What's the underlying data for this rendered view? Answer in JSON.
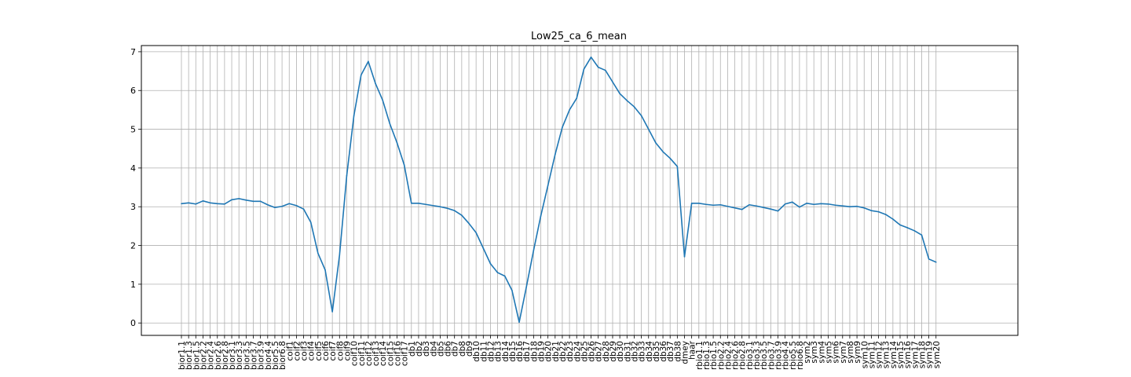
{
  "chart_data": {
    "type": "line",
    "title": "Low25_ca_6_mean",
    "xlabel": "",
    "ylabel": "",
    "ylim": [
      -0.32,
      7.16
    ],
    "yticks": [
      0,
      1,
      2,
      3,
      4,
      5,
      6,
      7
    ],
    "grid": true,
    "line_color": "#1f77b4",
    "categories": [
      "bior1.1",
      "bior1.3",
      "bior1.5",
      "bior2.2",
      "bior2.4",
      "bior2.6",
      "bior2.8",
      "bior3.1",
      "bior3.3",
      "bior3.5",
      "bior3.7",
      "bior3.9",
      "bior4.4",
      "bior5.5",
      "bior6.8",
      "coif1",
      "coif2",
      "coif3",
      "coif4",
      "coif5",
      "coif6",
      "coif7",
      "coif8",
      "coif9",
      "coif10",
      "coif11",
      "coif12",
      "coif13",
      "coif14",
      "coif15",
      "coif16",
      "coif17",
      "db1",
      "db2",
      "db3",
      "db4",
      "db5",
      "db6",
      "db7",
      "db8",
      "db9",
      "db10",
      "db11",
      "db12",
      "db13",
      "db14",
      "db15",
      "db16",
      "db17",
      "db18",
      "db19",
      "db20",
      "db21",
      "db22",
      "db23",
      "db24",
      "db25",
      "db26",
      "db27",
      "db28",
      "db29",
      "db30",
      "db31",
      "db32",
      "db33",
      "db34",
      "db35",
      "db36",
      "db37",
      "db38",
      "dmey",
      "haar",
      "rbio1.1",
      "rbio1.3",
      "rbio1.5",
      "rbio2.2",
      "rbio2.4",
      "rbio2.6",
      "rbio2.8",
      "rbio3.1",
      "rbio3.3",
      "rbio3.5",
      "rbio3.7",
      "rbio3.9",
      "rbio4.4",
      "rbio5.5",
      "rbio6.8",
      "sym2",
      "sym3",
      "sym4",
      "sym5",
      "sym6",
      "sym7",
      "sym8",
      "sym9",
      "sym10",
      "sym11",
      "sym12",
      "sym13",
      "sym14",
      "sym15",
      "sym16",
      "sym17",
      "sym18",
      "sym19",
      "sym20"
    ],
    "values": [
      3.08,
      3.1,
      3.07,
      3.15,
      3.1,
      3.08,
      3.07,
      3.18,
      3.21,
      3.17,
      3.14,
      3.14,
      3.05,
      2.98,
      3.01,
      3.08,
      3.03,
      2.94,
      2.6,
      1.8,
      1.37,
      0.29,
      1.75,
      3.8,
      5.35,
      6.4,
      6.75,
      6.18,
      5.75,
      5.14,
      4.65,
      4.08,
      3.09,
      3.09,
      3.06,
      3.03,
      3.0,
      2.96,
      2.9,
      2.78,
      2.57,
      2.33,
      1.93,
      1.53,
      1.3,
      1.21,
      0.84,
      0.02,
      0.93,
      1.87,
      2.76,
      3.55,
      4.35,
      5.05,
      5.5,
      5.8,
      6.55,
      6.86,
      6.6,
      6.52,
      6.22,
      5.92,
      5.74,
      5.58,
      5.35,
      5.0,
      4.65,
      4.42,
      4.25,
      4.04,
      1.71,
      3.09,
      3.09,
      3.06,
      3.04,
      3.05,
      3.01,
      2.97,
      2.93,
      3.05,
      3.02,
      2.98,
      2.94,
      2.89,
      3.07,
      3.12,
      2.99,
      3.09,
      3.06,
      3.08,
      3.07,
      3.04,
      3.02,
      3.0,
      3.01,
      2.97,
      2.9,
      2.87,
      2.8,
      2.68,
      2.53,
      2.46,
      2.38,
      2.27,
      1.65,
      1.57
    ]
  }
}
